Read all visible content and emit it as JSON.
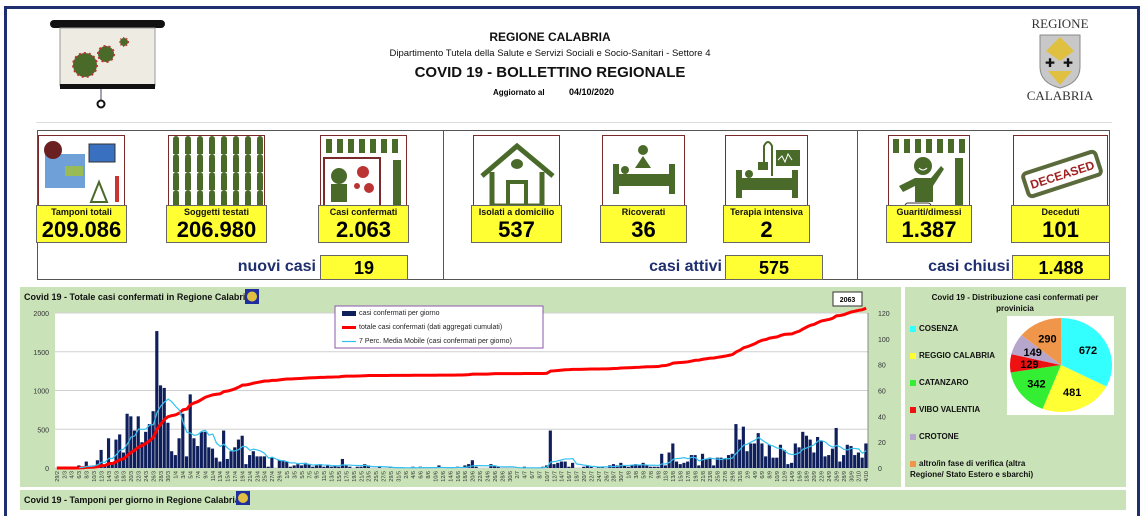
{
  "header": {
    "org": "REGIONE CALABRIA",
    "department": "Dipartimento Tutela della Salute e Servizi Sociali e Socio-Sanitari - Settore 4",
    "title": "COVID 19 - BOLLETTINO REGIONALE",
    "updated_label": "Aggiornato al",
    "updated_date": "04/10/2020",
    "logo_top": "REGIONE",
    "logo_bottom": "CALABRIA"
  },
  "cards": [
    {
      "label": "Tamponi totali",
      "value": "209.086",
      "icon": "lab-equipment-icon"
    },
    {
      "label": "Soggetti testati",
      "value": "206.980",
      "icon": "people-grid-icon"
    },
    {
      "label": "Casi confermati",
      "value": "2.063",
      "icon": "infected-person-icon"
    },
    {
      "label": "Isolati a domicilio",
      "value": "537",
      "icon": "house-icon"
    },
    {
      "label": "Ricoverati",
      "value": "36",
      "icon": "hospital-bed-icon"
    },
    {
      "label": "Terapia intensiva",
      "value": "2",
      "icon": "intensive-care-icon"
    },
    {
      "label": "Guariti/dimessi",
      "value": "1.387",
      "icon": "recovered-person-icon"
    },
    {
      "label": "Deceduti",
      "value": "101",
      "icon": "deceased-stamp-icon"
    }
  ],
  "summary": {
    "new_label": "nuovi casi",
    "new_value": "19",
    "active_label": "casi attivi",
    "active_value": "575",
    "closed_label": "casi chiusi",
    "closed_value": "1.488"
  },
  "chart_title": "Covid 19 - Totale casi confermati in Regione Calabria",
  "chart2_title": "Covid 19 - Tamponi per giorno in Regione Calabria",
  "colors": {
    "bars": "#0f1f5c",
    "cumulative": "#ff0000",
    "moving_avg": "#33c0f0",
    "panel": "#c9e2b8",
    "card": "#ffff33",
    "navy": "#1f2f6e"
  },
  "chart_data": {
    "type": "bar+line",
    "legend": [
      "casi confermati per giorno",
      "totale casi confermati (dati aggregati cumulati)",
      "7 Perc. Media Mobile (casi confermati per giorno)"
    ],
    "last_value_label": "2063",
    "left_axis": {
      "ticks": [
        "0",
        "500",
        "1000",
        "1500",
        "2000"
      ],
      "range": [
        0,
        2000
      ],
      "series": "totale casi confermati (dati aggregati cumulati)"
    },
    "right_axis": {
      "ticks": [
        "0",
        "20",
        "40",
        "60",
        "80",
        "100",
        "120"
      ],
      "range": [
        0,
        120
      ],
      "series": "casi confermati per giorno"
    },
    "x_start": "29/2",
    "x_end": "4/10",
    "x_ticks": [
      "29/2",
      "2/3",
      "4/3",
      "6/3",
      "8/3",
      "10/3",
      "12/3",
      "14/3",
      "16/3",
      "18/3",
      "20/3",
      "22/3",
      "24/3",
      "26/3",
      "28/3",
      "30/3",
      "1/4",
      "3/4",
      "5/4",
      "7/4",
      "9/4",
      "11/4",
      "13/4",
      "15/4",
      "17/4",
      "19/4",
      "21/4",
      "23/4",
      "25/4",
      "27/4",
      "29/4",
      "1/5",
      "3/5",
      "5/5",
      "7/5",
      "9/5",
      "11/5",
      "13/5",
      "15/5",
      "17/5",
      "19/5",
      "21/5",
      "23/5",
      "25/5",
      "27/5",
      "29/5",
      "31/5",
      "2/6",
      "4/6",
      "6/6",
      "8/6",
      "10/6",
      "12/6",
      "14/6",
      "16/6",
      "18/6",
      "20/6",
      "22/6",
      "24/6",
      "26/6",
      "28/6",
      "30/6",
      "2/7",
      "4/7",
      "6/7",
      "8/7",
      "10/7",
      "12/7",
      "14/7",
      "16/7",
      "18/7",
      "20/7",
      "22/7",
      "24/7",
      "26/7",
      "28/7",
      "30/7",
      "1/8",
      "3/8",
      "5/8",
      "7/8",
      "9/8",
      "11/8",
      "13/8",
      "15/8",
      "17/8",
      "19/8",
      "21/8",
      "23/8",
      "25/8",
      "27/8",
      "29/8",
      "31/8",
      "2/9",
      "4/9",
      "6/9",
      "8/9",
      "10/9",
      "12/9",
      "14/9",
      "16/9",
      "18/9",
      "20/9",
      "22/9",
      "24/9",
      "26/9",
      "28/9",
      "30/9",
      "2/10",
      "4/10"
    ],
    "daily": [
      0,
      0,
      0,
      0,
      0,
      0,
      2,
      1,
      5,
      1,
      2,
      6,
      14,
      2,
      23,
      3,
      22,
      26,
      12,
      42,
      40,
      29,
      40,
      20,
      28,
      34,
      44,
      106,
      64,
      62,
      35,
      13,
      10,
      23,
      42,
      9,
      57,
      23,
      17,
      28,
      28,
      16,
      15,
      8,
      5,
      29,
      7,
      13,
      16,
      22,
      25,
      3,
      10,
      13,
      9,
      9,
      9,
      1,
      8,
      0,
      6,
      6,
      5,
      1,
      2,
      3,
      2,
      4,
      3,
      1,
      2,
      3,
      1,
      2,
      1,
      2,
      1,
      7,
      2,
      1,
      0,
      1,
      1,
      3,
      2,
      0,
      0,
      1,
      0,
      0,
      1,
      0,
      0,
      0,
      0,
      0,
      1,
      0,
      1,
      0,
      0,
      0,
      0,
      2,
      0,
      0,
      0,
      0,
      1,
      0,
      2,
      3,
      6,
      1,
      0,
      0,
      0,
      3,
      2,
      1,
      0,
      0,
      0,
      0,
      0,
      0,
      1,
      0,
      0,
      0,
      0,
      1,
      2,
      29,
      3,
      4,
      5,
      5,
      1,
      4,
      0,
      0,
      1,
      2,
      1,
      0,
      1,
      1,
      0,
      2,
      3,
      2,
      4,
      2,
      1,
      2,
      3,
      2,
      4,
      2,
      1,
      1,
      1,
      11,
      2,
      12,
      19,
      5,
      3,
      4,
      5,
      10,
      10,
      2,
      11,
      7,
      8,
      2,
      8,
      8,
      7,
      10,
      11,
      34,
      22,
      32,
      13,
      19,
      19,
      27,
      19,
      9,
      18,
      8,
      8,
      18,
      14,
      3,
      4,
      19,
      16,
      28,
      25,
      22,
      12,
      24,
      21,
      9,
      10,
      15,
      31,
      5,
      10,
      18,
      17,
      10,
      12,
      8,
      19
    ]
  },
  "pie": {
    "title": "Covid 19 - Distribuzione casi confermati per provinicia",
    "slices": [
      {
        "label": "COSENZA",
        "value": 672,
        "color": "#33ffff"
      },
      {
        "label": "REGGIO CALABRIA",
        "value": 481,
        "color": "#ffff33"
      },
      {
        "label": "CATANZARO",
        "value": 342,
        "color": "#33ee33"
      },
      {
        "label": "VIBO VALENTIA",
        "value": 129,
        "color": "#ee1111"
      },
      {
        "label": "CROTONE",
        "value": 149,
        "color": "#b7a6cc"
      },
      {
        "label": "altro/in fase di verifica (altra Regione/ Stato Estero e sbarchi)",
        "value": 290,
        "color": "#f0964a"
      }
    ]
  }
}
